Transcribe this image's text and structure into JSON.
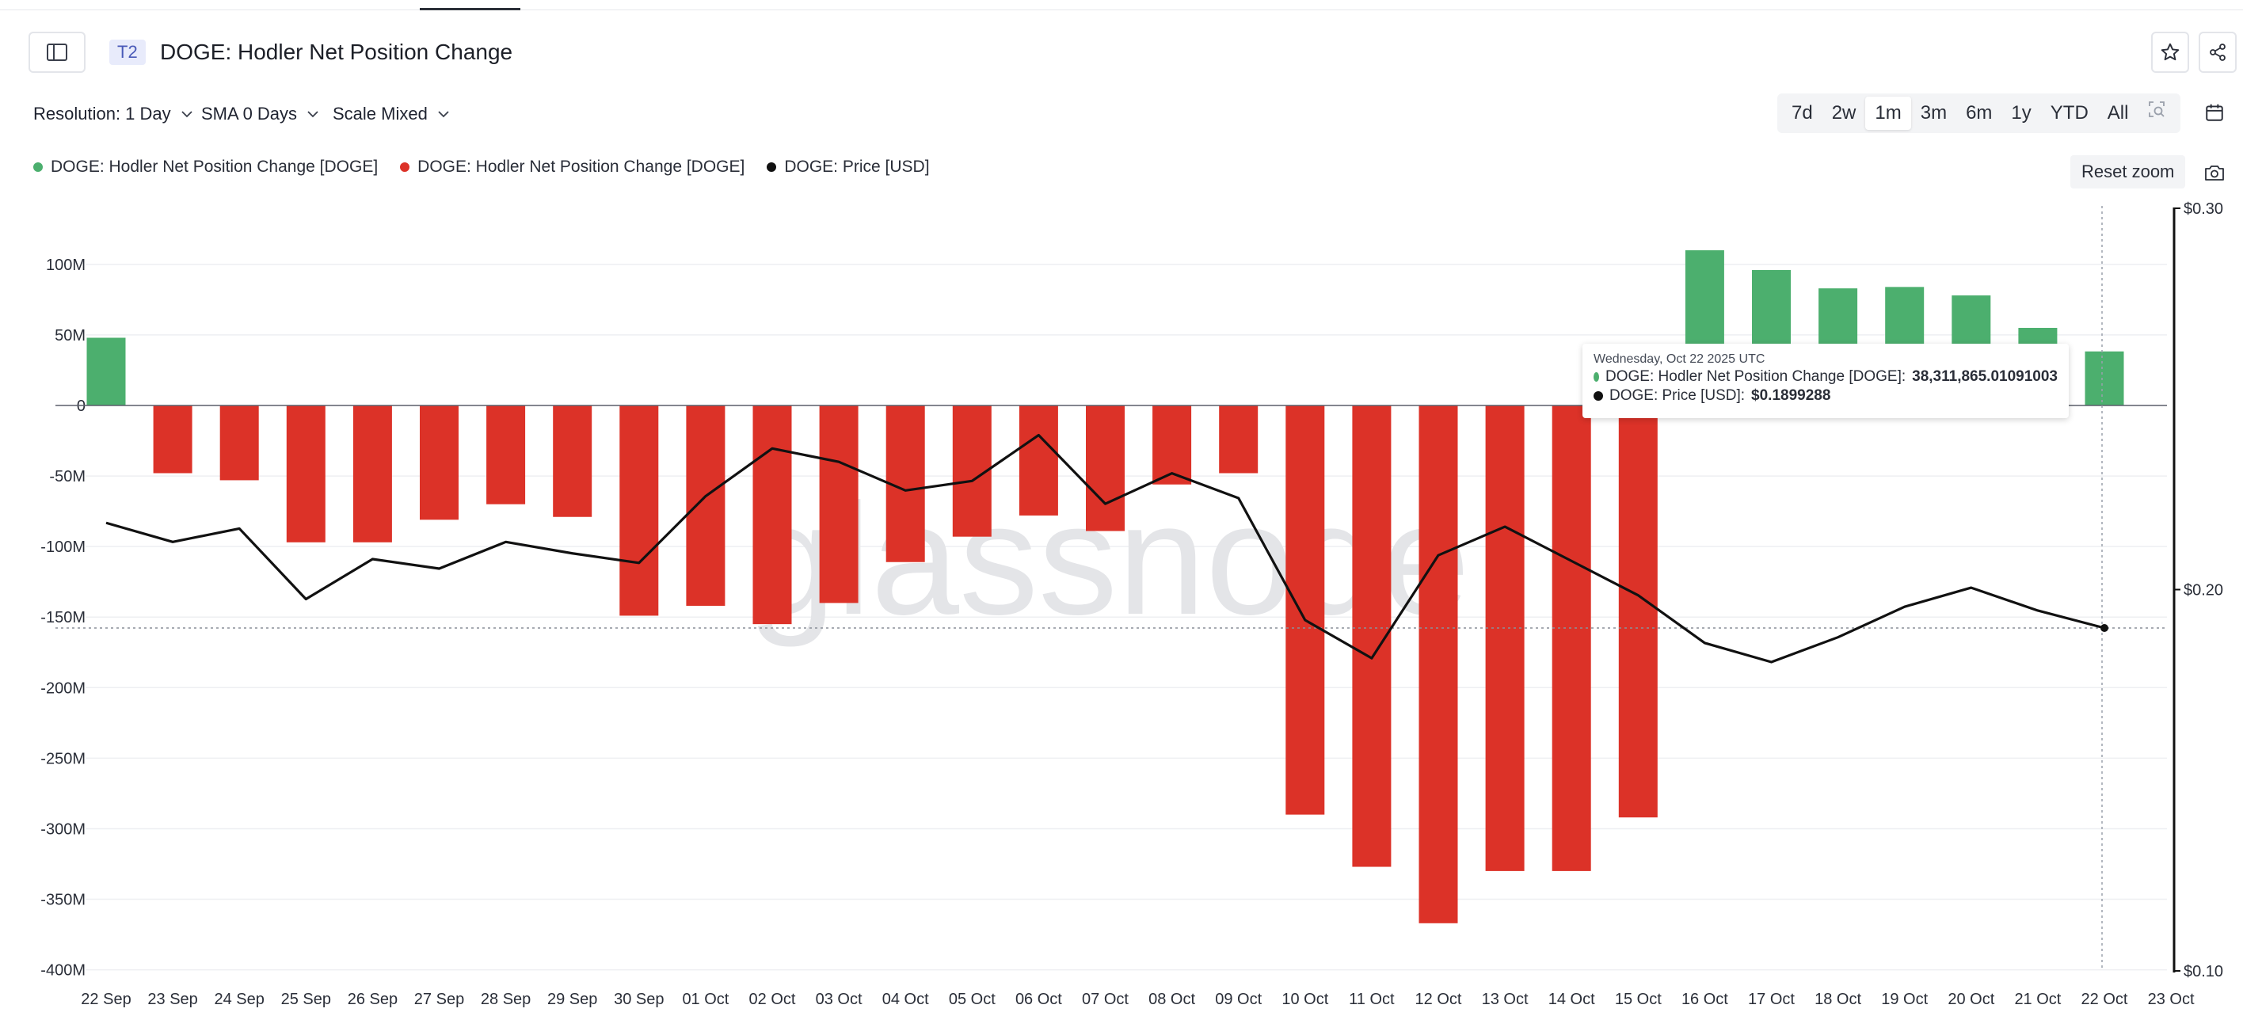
{
  "header": {
    "tier_badge": "T2",
    "title": "DOGE: Hodler Net Position Change"
  },
  "icons": {
    "sidebar": "sidebar-toggle-icon",
    "favorite": "star-icon",
    "share": "share-icon",
    "calendar": "calendar-icon",
    "camera": "camera-icon",
    "zoom": "zoom-search-icon",
    "chevron": "chevron-down-icon"
  },
  "controls": {
    "resolution": "Resolution: 1 Day",
    "sma": "SMA 0 Days",
    "scale": "Scale Mixed"
  },
  "ranges": [
    "7d",
    "2w",
    "1m",
    "3m",
    "6m",
    "1y",
    "YTD",
    "All"
  ],
  "active_range": "1m",
  "reset_zoom_label": "Reset zoom",
  "watermark": "glassnode",
  "colors": {
    "positive": "#4caf6e",
    "negative": "#dc3228",
    "price": "#111111",
    "grid": "#eeeff2"
  },
  "legend": [
    {
      "label": "DOGE: Hodler Net Position Change [DOGE]",
      "color": "#4caf6e"
    },
    {
      "label": "DOGE: Hodler Net Position Change [DOGE]",
      "color": "#dc3228"
    },
    {
      "label": "DOGE: Price [USD]",
      "color": "#111111"
    }
  ],
  "tooltip": {
    "date": "Wednesday, Oct 22 2025 UTC",
    "rows": [
      {
        "label": "DOGE: Hodler Net Position Change [DOGE]: ",
        "value": "38,311,865.01091003",
        "color": "#4caf6e"
      },
      {
        "label": "DOGE: Price [USD]: ",
        "value": "$0.1899288",
        "color": "#111111"
      }
    ]
  },
  "chart_data": {
    "type": "bar",
    "categories": [
      "22 Sep",
      "23 Sep",
      "24 Sep",
      "25 Sep",
      "26 Sep",
      "27 Sep",
      "28 Sep",
      "29 Sep",
      "30 Sep",
      "01 Oct",
      "02 Oct",
      "03 Oct",
      "04 Oct",
      "05 Oct",
      "06 Oct",
      "07 Oct",
      "08 Oct",
      "09 Oct",
      "10 Oct",
      "11 Oct",
      "12 Oct",
      "13 Oct",
      "14 Oct",
      "15 Oct",
      "16 Oct",
      "17 Oct",
      "18 Oct",
      "19 Oct",
      "20 Oct",
      "21 Oct",
      "22 Oct"
    ],
    "x_tick_labels": [
      "22 Sep",
      "23 Sep",
      "24 Sep",
      "25 Sep",
      "26 Sep",
      "27 Sep",
      "28 Sep",
      "29 Sep",
      "30 Sep",
      "01 Oct",
      "02 Oct",
      "03 Oct",
      "04 Oct",
      "05 Oct",
      "06 Oct",
      "07 Oct",
      "08 Oct",
      "09 Oct",
      "10 Oct",
      "11 Oct",
      "12 Oct",
      "13 Oct",
      "14 Oct",
      "15 Oct",
      "16 Oct",
      "17 Oct",
      "18 Oct",
      "19 Oct",
      "20 Oct",
      "21 Oct",
      "22 Oct",
      "23 Oct"
    ],
    "series": [
      {
        "name": "DOGE: Hodler Net Position Change [DOGE]",
        "axis": "left",
        "values": [
          48,
          -48,
          -53,
          -97,
          -97,
          -81,
          -70,
          -79,
          -149,
          -142,
          -155,
          -140,
          -111,
          -93,
          -78,
          -89,
          -56,
          -48,
          -290,
          -327,
          -367,
          -330,
          -330,
          -292,
          110,
          96,
          83,
          84,
          78,
          55,
          38.31
        ]
      },
      {
        "name": "DOGE: Price [USD]",
        "axis": "right",
        "values": [
          0.2175,
          0.2125,
          0.216,
          0.1975,
          0.208,
          0.2055,
          0.2125,
          0.2095,
          0.207,
          0.2245,
          0.237,
          0.2335,
          0.226,
          0.2285,
          0.2405,
          0.2225,
          0.2305,
          0.224,
          0.192,
          0.182,
          0.209,
          0.2165,
          0.2075,
          0.1985,
          0.186,
          0.181,
          0.1875,
          0.1955,
          0.2005,
          0.1945,
          0.1899288
        ]
      }
    ],
    "left_axis": {
      "ticks": [
        "100M",
        "50M",
        "0",
        "-50M",
        "-100M",
        "-150M",
        "-200M",
        "-250M",
        "-300M",
        "-350M",
        "-400M"
      ],
      "unit": "M",
      "ylim": [
        -400,
        140
      ]
    },
    "right_axis": {
      "ticks": [
        "$0.30",
        "$0.20",
        "$0.10"
      ],
      "ylim": [
        0.1,
        0.3
      ]
    },
    "reference_line_price": 0.1899288,
    "highlight_category": "22 Oct",
    "grid": true
  }
}
